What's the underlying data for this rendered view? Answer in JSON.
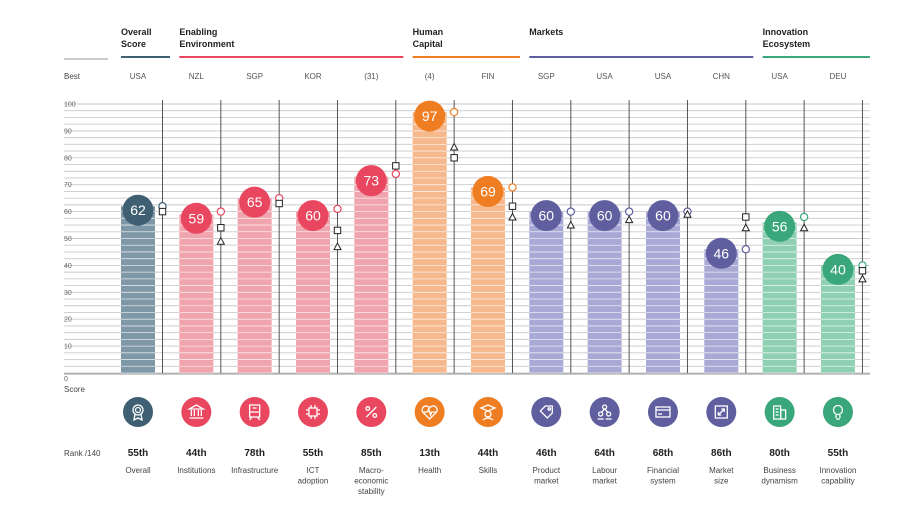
{
  "chart_data": {
    "type": "bar",
    "side_labels": {
      "best": "Best",
      "score": "Score",
      "rank": "Rank /140"
    },
    "y_ticks": [
      "100",
      "90",
      "80",
      "70",
      "60",
      "50",
      "40",
      "30",
      "20",
      "10",
      "0"
    ],
    "ylim": [
      0,
      100
    ],
    "groups": [
      {
        "title_lines": [
          "Overall",
          "Score"
        ],
        "color": "#3f5f73",
        "start": 0,
        "end": 0
      },
      {
        "title_lines": [
          "Enabling",
          "Environment"
        ],
        "color": "#e8475f",
        "start": 1,
        "end": 4
      },
      {
        "title_lines": [
          "Human",
          "Capital"
        ],
        "color": "#ef7d22",
        "start": 5,
        "end": 6
      },
      {
        "title_lines": [
          "Markets"
        ],
        "color": "#5f5f9f",
        "start": 7,
        "end": 10
      },
      {
        "title_lines": [
          "Innovation",
          "Ecosystem"
        ],
        "color": "#3aa77a",
        "start": 11,
        "end": 12
      }
    ],
    "pillars": [
      {
        "best": "USA",
        "value": 62,
        "value_label": "62",
        "rank": "55th",
        "label_lines": [
          "Overall"
        ],
        "bar": "#7f98a8",
        "stripe": "#ffffff",
        "circle": "#3f5f73",
        "icon": "medal-icon",
        "m1": 62,
        "m2": 60,
        "m3": null
      },
      {
        "best": "NZL",
        "value": 59,
        "value_label": "59",
        "rank": "44th",
        "label_lines": [
          "Institutions"
        ],
        "bar": "#f0a4ad",
        "stripe": "#ffffff",
        "circle": "#e8475f",
        "icon": "institution-icon",
        "m1": 60,
        "m2": 54,
        "m3": 49
      },
      {
        "best": "SGP",
        "value": 65,
        "value_label": "65",
        "rank": "78th",
        "label_lines": [
          "Infrastructure"
        ],
        "bar": "#f0a4ad",
        "stripe": "#ffffff",
        "circle": "#e8475f",
        "icon": "train-icon",
        "m1": 65,
        "m2": 63,
        "m3": null
      },
      {
        "best": "KOR",
        "value": 60,
        "value_label": "60",
        "rank": "55th",
        "label_lines": [
          "ICT",
          "adoption"
        ],
        "bar": "#f0a4ad",
        "stripe": "#ffffff",
        "circle": "#e8475f",
        "icon": "chip-icon",
        "m1": 61,
        "m2": 53,
        "m3": 47
      },
      {
        "best": "(31)",
        "value": 73,
        "value_label": "73",
        "rank": "85th",
        "label_lines": [
          "Macro-",
          "economic",
          "stability"
        ],
        "bar": "#f0a4ad",
        "stripe": "#ffffff",
        "circle": "#e8475f",
        "icon": "percent-icon",
        "m1": 74,
        "m2": 77,
        "m3": null
      },
      {
        "best": "(4)",
        "value": 97,
        "value_label": "97",
        "rank": "13th",
        "label_lines": [
          "Health"
        ],
        "bar": "#f6b98d",
        "stripe": "#ffffff",
        "circle": "#ef7d22",
        "icon": "heartbeat-icon",
        "m1": 97,
        "m2": 80,
        "m3": 84
      },
      {
        "best": "FIN",
        "value": 69,
        "value_label": "69",
        "rank": "44th",
        "label_lines": [
          "Skills"
        ],
        "bar": "#f6b98d",
        "stripe": "#ffffff",
        "circle": "#ef7d22",
        "icon": "graduate-icon",
        "m1": 69,
        "m2": 62,
        "m3": 58
      },
      {
        "best": "SGP",
        "value": 60,
        "value_label": "60",
        "rank": "46th",
        "label_lines": [
          "Product",
          "market"
        ],
        "bar": "#a9a9d6",
        "stripe": "#ffffff",
        "circle": "#5f5f9f",
        "icon": "tag-icon",
        "m1": 60,
        "m2": null,
        "m3": 55
      },
      {
        "best": "USA",
        "value": 60,
        "value_label": "60",
        "rank": "64th",
        "label_lines": [
          "Labour",
          "market"
        ],
        "bar": "#a9a9d6",
        "stripe": "#ffffff",
        "circle": "#5f5f9f",
        "icon": "people-icon",
        "m1": 60,
        "m2": null,
        "m3": 57
      },
      {
        "best": "USA",
        "value": 60,
        "value_label": "60",
        "rank": "68th",
        "label_lines": [
          "Financial",
          "system"
        ],
        "bar": "#a9a9d6",
        "stripe": "#ffffff",
        "circle": "#5f5f9f",
        "icon": "card-icon",
        "m1": 60,
        "m2": null,
        "m3": 59
      },
      {
        "best": "CHN",
        "value": 46,
        "value_label": "46",
        "rank": "86th",
        "label_lines": [
          "Market",
          "size"
        ],
        "bar": "#a9a9d6",
        "stripe": "#ffffff",
        "circle": "#5f5f9f",
        "icon": "expand-icon",
        "m1": 46,
        "m2": 58,
        "m3": 54
      },
      {
        "best": "USA",
        "value": 56,
        "value_label": "56",
        "rank": "80th",
        "label_lines": [
          "Business",
          "dynamism"
        ],
        "bar": "#8fd0b2",
        "stripe": "#ffffff",
        "circle": "#3aa77a",
        "icon": "building-icon",
        "m1": 58,
        "m2": null,
        "m3": 54
      },
      {
        "best": "DEU",
        "value": 40,
        "value_label": "40",
        "rank": "55th",
        "label_lines": [
          "Innovation",
          "capability"
        ],
        "bar": "#8fd0b2",
        "stripe": "#ffffff",
        "circle": "#3aa77a",
        "icon": "lightbulb-icon",
        "m1": 40,
        "m2": 38,
        "m3": 35
      }
    ]
  }
}
